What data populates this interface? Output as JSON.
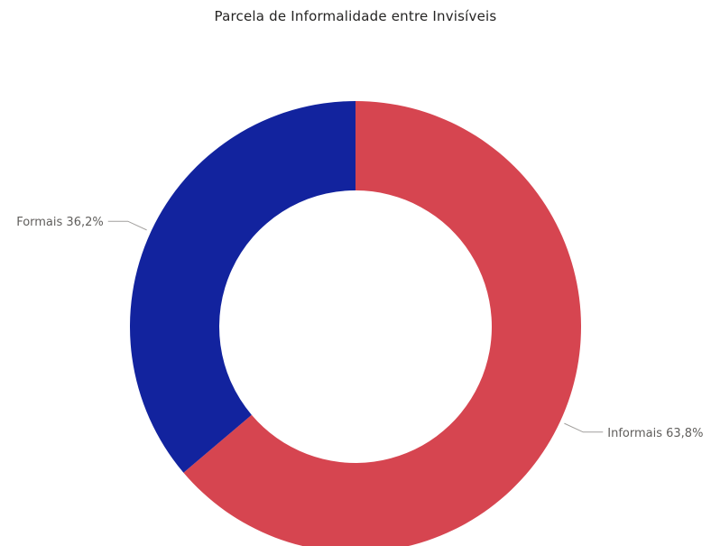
{
  "chart_data": {
    "type": "pie",
    "variant": "donut",
    "title": "Parcela de Informalidade entre Invisíveis",
    "start_angle_deg": 0,
    "direction": "clockwise",
    "slices": [
      {
        "label": "Informais",
        "value": 63.8,
        "value_text": "63,8%",
        "color": "#d64550"
      },
      {
        "label": "Formais",
        "value": 36.2,
        "value_text": "36,2%",
        "color": "#12239e"
      }
    ],
    "legend": "none"
  }
}
